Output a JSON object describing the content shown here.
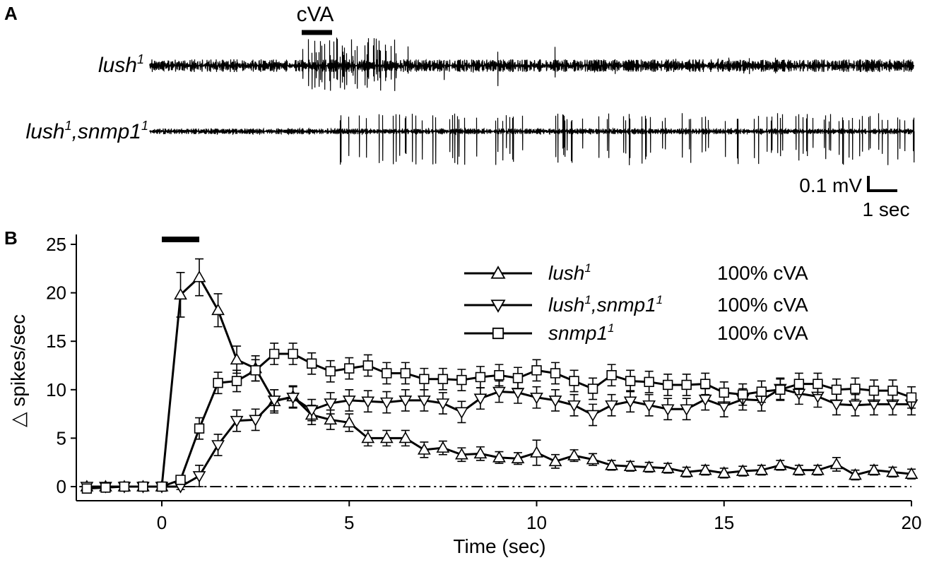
{
  "panel_a": {
    "label": "A",
    "stimulus_label": "cVA",
    "traces": [
      {
        "name": "lush",
        "sup": "1"
      },
      {
        "name_parts": [
          "lush",
          "1",
          ",snmp1",
          "1"
        ]
      }
    ],
    "scale_bar": {
      "amplitude_label": "0.1 mV",
      "time_label": "1 sec"
    }
  },
  "panel_b": {
    "label": "B"
  },
  "chart_data": {
    "type": "line",
    "xlabel": "Time (sec)",
    "ylabel": "△ spikes/sec",
    "xlim": [
      -2.2,
      20
    ],
    "ylim": [
      -1.5,
      26
    ],
    "xticks": [
      0,
      5,
      10,
      15,
      20
    ],
    "yticks": [
      0,
      5,
      10,
      15,
      20,
      25
    ],
    "stimulus_bar": [
      0,
      1
    ],
    "baseline": 0,
    "legend_position": "top-right",
    "x": [
      -2,
      -1.5,
      -1,
      -0.5,
      0,
      0.5,
      1,
      1.5,
      2,
      2.5,
      3,
      3.5,
      4,
      4.5,
      5,
      5.5,
      6,
      6.5,
      7,
      7.5,
      8,
      8.5,
      9,
      9.5,
      10,
      10.5,
      11,
      11.5,
      12,
      12.5,
      13,
      13.5,
      14,
      14.5,
      15,
      15.5,
      16,
      16.5,
      17,
      17.5,
      18,
      18.5,
      19,
      19.5,
      20
    ],
    "series": [
      {
        "name": "lush",
        "name_sup": "1",
        "condition": "100% cVA",
        "marker": "triangle-up",
        "values": [
          0,
          0,
          0,
          0,
          0,
          19.8,
          21.6,
          18.2,
          13.1,
          12.2,
          8.8,
          9.3,
          7.4,
          6.9,
          6.6,
          5.0,
          5.0,
          5.0,
          3.8,
          4.0,
          3.3,
          3.4,
          3.0,
          2.9,
          3.5,
          2.6,
          3.2,
          2.8,
          2.2,
          2.1,
          2.0,
          1.9,
          1.5,
          1.7,
          1.4,
          1.6,
          1.7,
          2.2,
          1.7,
          1.7,
          2.3,
          1.2,
          1.7,
          1.5,
          1.3
        ],
        "errors": [
          0.3,
          0.3,
          0.3,
          0.3,
          0.3,
          2.3,
          1.9,
          1.7,
          1.4,
          1.3,
          1.2,
          1.1,
          1.0,
          1.0,
          0.9,
          0.8,
          0.8,
          0.8,
          0.8,
          0.7,
          0.7,
          0.7,
          0.6,
          0.6,
          1.3,
          0.7,
          0.6,
          0.6,
          0.5,
          0.5,
          0.5,
          0.5,
          0.5,
          0.5,
          0.5,
          0.5,
          0.5,
          0.5,
          0.5,
          0.5,
          0.7,
          0.5,
          0.5,
          0.5,
          0.5
        ]
      },
      {
        "name_parts": [
          "lush",
          "1",
          ",snmp1",
          "1"
        ],
        "condition": "100% cVA",
        "marker": "triangle-down",
        "values": [
          0,
          0,
          0,
          0,
          0,
          0,
          1.1,
          4.3,
          6.8,
          6.9,
          8.9,
          9.2,
          7.9,
          8.6,
          8.9,
          8.8,
          8.7,
          8.9,
          8.9,
          8.6,
          7.7,
          9.1,
          9.8,
          9.7,
          9.2,
          8.9,
          8.4,
          7.4,
          8.4,
          8.8,
          8.4,
          8.0,
          8.0,
          9.0,
          8.3,
          9.0,
          8.9,
          10.1,
          9.6,
          9.3,
          8.5,
          8.4,
          8.5,
          8.5,
          8.5
        ]
      },
      {
        "name_parts": [
          "snmp1",
          "1"
        ],
        "condition": "100% cVA",
        "marker": "square",
        "values": [
          -0.2,
          -0.1,
          0,
          0,
          0,
          0.7,
          6.0,
          10.7,
          10.9,
          12.0,
          13.7,
          13.7,
          12.7,
          11.9,
          12.2,
          12.5,
          11.7,
          11.7,
          11.1,
          11.1,
          11.0,
          11.3,
          11.5,
          11.2,
          12.0,
          11.7,
          10.9,
          10.1,
          11.5,
          10.9,
          10.8,
          10.5,
          10.5,
          10.6,
          9.7,
          9.5,
          9.8,
          10.0,
          10.6,
          10.6,
          10.0,
          10.1,
          9.9,
          9.9,
          9.2
        ]
      }
    ]
  }
}
